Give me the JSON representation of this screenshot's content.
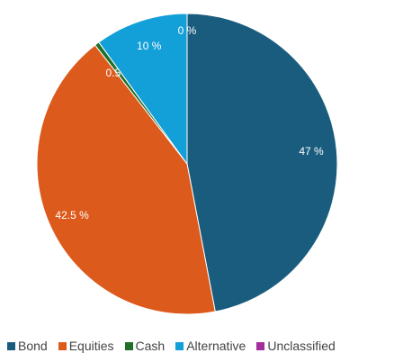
{
  "chart_data": {
    "type": "pie",
    "slices": [
      {
        "label": "Bond",
        "value": 47,
        "display": "47 %",
        "color": "#1a5c7e"
      },
      {
        "label": "Equities",
        "value": 42.5,
        "display": "42.5 %",
        "color": "#dc5a1c"
      },
      {
        "label": "Cash",
        "value": 0.5,
        "display": "0.5 %",
        "color": "#1f6f2a"
      },
      {
        "label": "Alternative",
        "value": 10,
        "display": "10 %",
        "color": "#139fd8"
      },
      {
        "label": "Unclassified",
        "value": 0,
        "display": "0 %",
        "color": "#a3309a"
      }
    ],
    "start_angle": "12 o'clock",
    "direction": "clockwise",
    "legend_position": "bottom"
  }
}
